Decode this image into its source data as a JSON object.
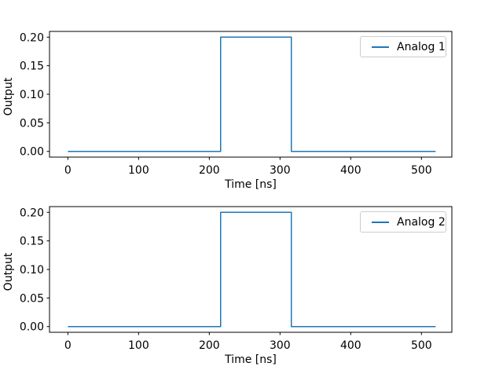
{
  "figure": {
    "background": "#ffffff",
    "spine_color": "#000000",
    "tick_color": "#000000",
    "text_color": "#000000"
  },
  "chart_data": [
    {
      "type": "line",
      "line_style": "step",
      "title": "",
      "xlabel": "Time [ns]",
      "ylabel": "Output",
      "xlim": [
        -26,
        543
      ],
      "ylim": [
        -0.01,
        0.21
      ],
      "x_ticks": [
        0,
        100,
        200,
        300,
        400,
        500
      ],
      "x_tick_labels": [
        "0",
        "100",
        "200",
        "300",
        "400",
        "500"
      ],
      "y_ticks": [
        0.0,
        0.05,
        0.1,
        0.15,
        0.2
      ],
      "y_tick_labels": [
        "0.00",
        "0.05",
        "0.10",
        "0.15",
        "0.20"
      ],
      "grid": false,
      "legend": {
        "position": "upper right"
      },
      "series": [
        {
          "name": "Analog 1",
          "color": "#1f77b4",
          "points": [
            [
              0,
              0
            ],
            [
              216,
              0
            ],
            [
              216,
              0.2
            ],
            [
              316,
              0.2
            ],
            [
              316,
              0
            ],
            [
              520,
              0
            ]
          ]
        }
      ]
    },
    {
      "type": "line",
      "line_style": "step",
      "title": "",
      "xlabel": "Time [ns]",
      "ylabel": "Output",
      "xlim": [
        -26,
        543
      ],
      "ylim": [
        -0.01,
        0.21
      ],
      "x_ticks": [
        0,
        100,
        200,
        300,
        400,
        500
      ],
      "x_tick_labels": [
        "0",
        "100",
        "200",
        "300",
        "400",
        "500"
      ],
      "y_ticks": [
        0.0,
        0.05,
        0.1,
        0.15,
        0.2
      ],
      "y_tick_labels": [
        "0.00",
        "0.05",
        "0.10",
        "0.15",
        "0.20"
      ],
      "grid": false,
      "legend": {
        "position": "upper right"
      },
      "series": [
        {
          "name": "Analog 2",
          "color": "#1f77b4",
          "points": [
            [
              0,
              0
            ],
            [
              216,
              0
            ],
            [
              216,
              0.2
            ],
            [
              316,
              0.2
            ],
            [
              316,
              0
            ],
            [
              520,
              0
            ]
          ]
        }
      ]
    }
  ]
}
